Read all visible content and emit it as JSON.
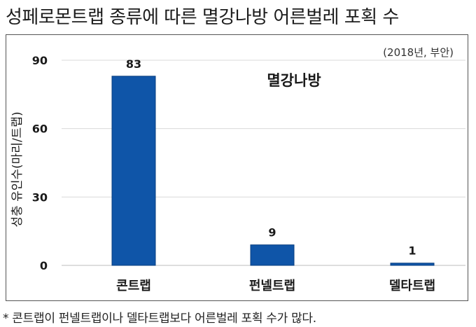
{
  "title": "성페로몬트랩 종류에 따른 멸강나방 어른벌레 포획 수",
  "footnote": "* 콘트랩이 펀넬트랩이나 델타트랩보다 어른벌레 포획 수가 많다.",
  "chart_data": {
    "type": "bar",
    "title": "멸강나방",
    "subtitle": "(2018년, 부안)",
    "ylabel": "성충 유인수(마리/트랩)",
    "xlabel": "",
    "categories": [
      "콘트랩",
      "펀넬트랩",
      "델타트랩"
    ],
    "values": [
      83,
      9,
      1
    ],
    "data_labels": [
      "83",
      "9",
      "1"
    ],
    "yticks": [
      0,
      30,
      60,
      90
    ],
    "ylim": [
      0,
      90
    ],
    "grid": true,
    "bar_color": "#0f55a8"
  }
}
